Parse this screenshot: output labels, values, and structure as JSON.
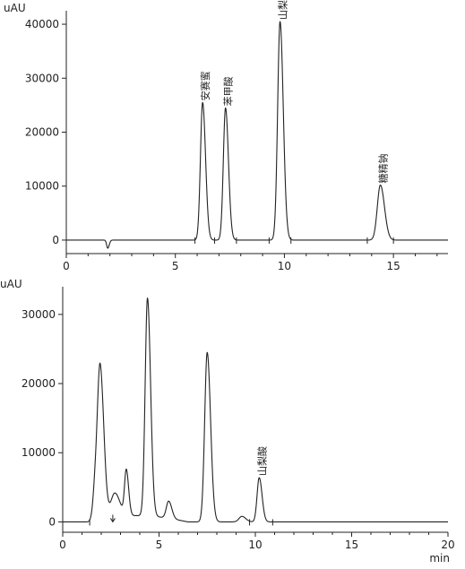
{
  "chart_data": [
    {
      "type": "line",
      "ylabel": "uAU",
      "xlabel": "",
      "xlim": [
        0,
        17.5
      ],
      "ylim": [
        -2500,
        42500
      ],
      "x_ticks": [
        0,
        5,
        10,
        15
      ],
      "y_ticks": [
        0,
        10000,
        20000,
        30000,
        40000
      ],
      "baseline": 0,
      "peaks": [
        {
          "rt": 1.9,
          "height": -1500,
          "width": 0.05,
          "label": ""
        },
        {
          "rt": 6.25,
          "height": 25500,
          "width": 0.1,
          "label": "安赛蜜"
        },
        {
          "rt": 7.3,
          "height": 24500,
          "width": 0.1,
          "label": "苯甲酸"
        },
        {
          "rt": 9.8,
          "height": 40500,
          "width": 0.11,
          "label": "山梨酸"
        },
        {
          "rt": 14.4,
          "height": 10200,
          "width": 0.14,
          "label": "糖精钠"
        }
      ],
      "markers": [
        5.9,
        6.8,
        7.8,
        9.3,
        10.3,
        13.8,
        15.0
      ]
    },
    {
      "type": "line",
      "ylabel": "uAU",
      "xlabel": "min",
      "xlim": [
        0,
        20
      ],
      "ylim": [
        -1500,
        34000
      ],
      "x_ticks": [
        0,
        5,
        10,
        15,
        20
      ],
      "y_ticks": [
        0,
        10000,
        20000,
        30000
      ],
      "baseline": 0,
      "peaks": [
        {
          "rt": 1.95,
          "height": 21000,
          "width": 0.14,
          "label": ""
        },
        {
          "rt": 1.7,
          "height": 5000,
          "width": 0.12,
          "label": ""
        },
        {
          "rt": 2.7,
          "height": 3500,
          "width": 0.2,
          "label": ""
        },
        {
          "rt": 3.3,
          "height": 6500,
          "width": 0.09,
          "label": ""
        },
        {
          "rt": 4.4,
          "height": 31500,
          "width": 0.12,
          "label": ""
        },
        {
          "rt": 5.5,
          "height": 2500,
          "width": 0.12,
          "label": ""
        },
        {
          "rt": 7.5,
          "height": 24500,
          "width": 0.13,
          "label": ""
        },
        {
          "rt": 9.3,
          "height": 800,
          "width": 0.15,
          "label": ""
        },
        {
          "rt": 10.2,
          "height": 6400,
          "width": 0.11,
          "label": "山梨酸"
        }
      ],
      "hump": {
        "start": 1.3,
        "end": 6.5,
        "height": 900
      },
      "markers": [
        1.4,
        9.7,
        10.9
      ],
      "arrow": 2.6
    }
  ]
}
